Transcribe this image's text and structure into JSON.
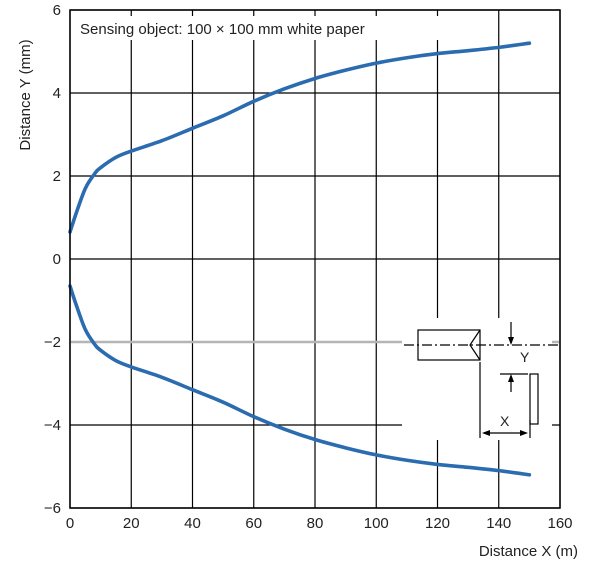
{
  "chart_data": {
    "type": "line",
    "annotation": "Sensing object: 100 × 100 mm white paper",
    "xlabel": "Distance X (m)",
    "ylabel": "Distance Y (mm)",
    "xlim": [
      0,
      160
    ],
    "ylim": [
      -6,
      6
    ],
    "xticks": [
      0,
      20,
      40,
      60,
      80,
      100,
      120,
      140,
      160
    ],
    "yticks": [
      -6,
      -4,
      -2,
      0,
      2,
      4,
      6
    ],
    "ytick_labels": [
      "−6",
      "−4",
      "−2",
      "0",
      "2",
      "4",
      "6"
    ],
    "grid": true,
    "line_color": "#2b6cb0",
    "series": [
      {
        "x": [
          0,
          2,
          5,
          8,
          10,
          15,
          20,
          30,
          40,
          50,
          60,
          70,
          80,
          90,
          100,
          110,
          120,
          130,
          140,
          150
        ],
        "values": [
          0.65,
          1.1,
          1.7,
          2.05,
          2.2,
          2.45,
          2.6,
          2.85,
          3.15,
          3.45,
          3.8,
          4.1,
          4.35,
          4.55,
          4.72,
          4.85,
          4.95,
          5.02,
          5.1,
          5.2
        ]
      },
      {
        "x": [
          0,
          2,
          5,
          8,
          10,
          15,
          20,
          30,
          40,
          50,
          60,
          70,
          80,
          90,
          100,
          110,
          120,
          130,
          140,
          150
        ],
        "values": [
          -0.65,
          -1.1,
          -1.7,
          -2.05,
          -2.2,
          -2.45,
          -2.6,
          -2.85,
          -3.15,
          -3.45,
          -3.8,
          -4.1,
          -4.35,
          -4.55,
          -4.72,
          -4.85,
          -4.95,
          -5.02,
          -5.1,
          -5.2
        ]
      }
    ],
    "reference_line": {
      "y": -2,
      "color": "#b5b5b5"
    },
    "inset_labels": {
      "y": "Y",
      "x": "X"
    }
  }
}
